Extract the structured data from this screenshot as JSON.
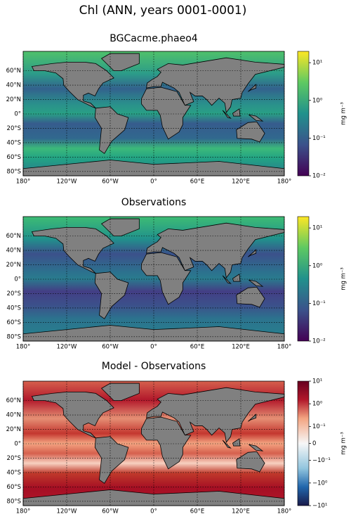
{
  "title": "Chl (ANN, years 0001-0001)",
  "xlim": [
    -180,
    180
  ],
  "ylim": [
    -86,
    87
  ],
  "lon_ticks": [
    {
      "value": -180,
      "label": "180°"
    },
    {
      "value": -120,
      "label": "120°W"
    },
    {
      "value": -60,
      "label": "60°W"
    },
    {
      "value": 0,
      "label": "0°"
    },
    {
      "value": 60,
      "label": "60°E"
    },
    {
      "value": 120,
      "label": "120°E"
    },
    {
      "value": 180,
      "label": "180°"
    }
  ],
  "lat_ticks": [
    {
      "value": 60,
      "label": "60°N"
    },
    {
      "value": 40,
      "label": "40°N"
    },
    {
      "value": 20,
      "label": "20°N"
    },
    {
      "value": 0,
      "label": "0°"
    },
    {
      "value": -20,
      "label": "20°S"
    },
    {
      "value": -40,
      "label": "40°S"
    },
    {
      "value": -60,
      "label": "60°S"
    },
    {
      "value": -80,
      "label": "80°S"
    }
  ],
  "grid": true,
  "panels": [
    {
      "title": "BGCacme.phaeo4",
      "colorbar": {
        "label": "mg m⁻³",
        "scale": "log",
        "lim": [
          0.01,
          20
        ],
        "colormap": "viridis",
        "ticks": [
          {
            "value": 10,
            "label": "10¹"
          },
          {
            "value": 1,
            "label": "10⁰"
          },
          {
            "value": 0.1,
            "label": "10⁻¹"
          },
          {
            "value": 0.01,
            "label": "10⁻²"
          }
        ]
      }
    },
    {
      "title": "Observations",
      "colorbar": {
        "label": "mg m⁻³",
        "scale": "log",
        "lim": [
          0.01,
          20
        ],
        "colormap": "viridis",
        "ticks": [
          {
            "value": 10,
            "label": "10¹"
          },
          {
            "value": 1,
            "label": "10⁰"
          },
          {
            "value": 0.1,
            "label": "10⁻¹"
          },
          {
            "value": 0.01,
            "label": "10⁻²"
          }
        ]
      }
    },
    {
      "title": "Model - Observations",
      "colorbar": {
        "label": "mg m⁻³",
        "scale": "symlog",
        "linthresh": 0.1,
        "lim": [
          -10,
          10
        ],
        "colormap": "RdBu_r",
        "ticks": [
          {
            "value": 10,
            "label": "10¹"
          },
          {
            "value": 1,
            "label": "10⁰"
          },
          {
            "value": 0.1,
            "label": "10⁻¹"
          },
          0,
          {
            "value": -0.1,
            "label": "−10⁻¹"
          },
          {
            "value": -1,
            "label": "−10⁰"
          },
          {
            "value": -10,
            "label": "−10¹"
          }
        ]
      }
    }
  ]
}
